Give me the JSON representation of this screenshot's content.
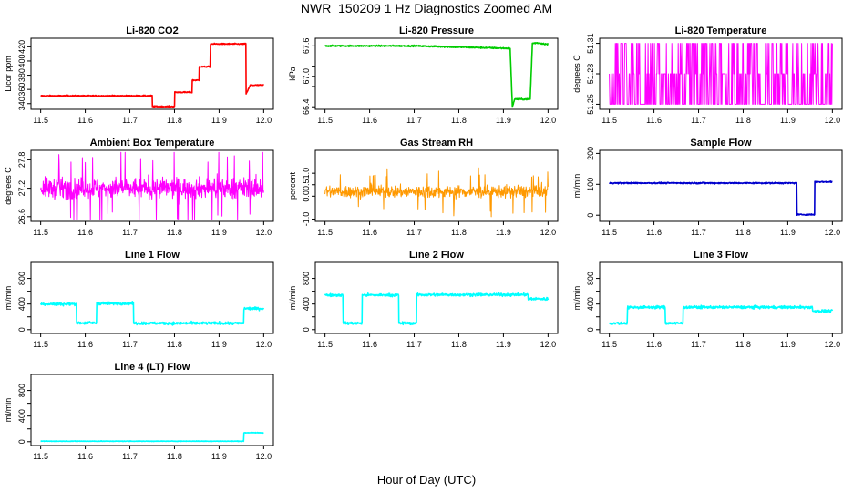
{
  "figure": {
    "title": "NWR_150209  1 Hz Diagnostics Zoomed AM",
    "xlabel": "Hour of Day (UTC)"
  },
  "chart_data": [
    {
      "type": "line",
      "title": "Li-820 CO2",
      "ylabel": "Licor ppm",
      "color": "#ff0000",
      "xlim": [
        11.5,
        12.0
      ],
      "ylim": [
        332,
        432
      ],
      "xticks": [
        "11.5",
        "11.6",
        "11.7",
        "11.8",
        "11.9",
        "12.0"
      ],
      "yticks": [
        340,
        360,
        380,
        400,
        420
      ],
      "noise": 0.6,
      "x": [
        11.5,
        11.75,
        11.75,
        11.8,
        11.8,
        11.82,
        11.82,
        11.8399,
        11.8399,
        11.855,
        11.855,
        11.88,
        11.88,
        11.96,
        11.96,
        11.97,
        12.0
      ],
      "y": [
        351,
        351,
        336,
        336,
        356,
        356,
        356,
        356,
        373,
        373,
        392,
        392,
        424,
        424,
        353,
        366,
        366
      ]
    },
    {
      "type": "line",
      "title": "Li-820 Pressure",
      "ylabel": "kPa",
      "color": "#00cc00",
      "xlim": [
        11.5,
        12.0
      ],
      "ylim": [
        66.35,
        67.75
      ],
      "xticks": [
        "11.5",
        "11.6",
        "11.7",
        "11.8",
        "11.9",
        "12.0"
      ],
      "yticks": [
        66.4,
        66.8,
        67.0,
        67.2,
        67.6
      ],
      "ytick_labels": [
        "66.4",
        "",
        "67.0",
        "",
        "67.6"
      ],
      "noise": 0.01,
      "x": [
        11.5,
        11.7,
        11.915,
        11.92,
        11.925,
        11.93,
        11.96,
        11.965,
        11.975,
        12.0
      ],
      "y": [
        67.6,
        67.6,
        67.55,
        66.4,
        66.55,
        66.55,
        66.55,
        67.65,
        67.66,
        67.63
      ]
    },
    {
      "type": "line",
      "title": "Li-820 Temperature",
      "ylabel": "degrees C",
      "color": "#ff00ff",
      "xlim": [
        11.5,
        12.0
      ],
      "ylim": [
        51.245,
        51.315
      ],
      "xticks": [
        "11.5",
        "11.6",
        "11.7",
        "11.8",
        "11.9",
        "12.0"
      ],
      "yticks": [
        51.25,
        51.28,
        51.31
      ],
      "levels": [
        51.25,
        51.28,
        51.31
      ],
      "style": "jump"
    },
    {
      "type": "line",
      "title": "Ambient Box Temperature",
      "ylabel": "degrees C",
      "color": "#ff00ff",
      "xlim": [
        11.5,
        12.0
      ],
      "ylim": [
        26.5,
        28.0
      ],
      "xticks": [
        "11.5",
        "11.6",
        "11.7",
        "11.8",
        "11.9",
        "12.0"
      ],
      "yticks": [
        26.6,
        27.2,
        27.8
      ],
      "ytick_labels": [
        "26.6",
        "27.2",
        "27.8"
      ],
      "mean": 27.2,
      "noise": 0.28,
      "style": "noise"
    },
    {
      "type": "line",
      "title": "Gas Stream RH",
      "ylabel": "percent",
      "color": "#ff9900",
      "xlim": [
        11.5,
        12.0
      ],
      "ylim": [
        -1.1,
        2.0
      ],
      "xticks": [
        "11.5",
        "11.6",
        "11.7",
        "11.8",
        "11.9",
        "12.0"
      ],
      "yticks": [
        -1.0,
        0.0,
        0.5,
        1.0
      ],
      "ytick_labels": [
        "-1.0",
        "0.0",
        "0.5",
        "1.0"
      ],
      "mean": 0.2,
      "noise": 0.35,
      "style": "noise"
    },
    {
      "type": "line",
      "title": "Sample Flow",
      "ylabel": "ml/min",
      "color": "#0000cc",
      "xlim": [
        11.5,
        12.0
      ],
      "ylim": [
        -20,
        210
      ],
      "xticks": [
        "11.5",
        "11.6",
        "11.7",
        "11.8",
        "11.9",
        "12.0"
      ],
      "yticks": [
        0,
        100,
        200
      ],
      "noise": 1.5,
      "x": [
        11.5,
        11.92,
        11.92,
        11.96,
        11.96,
        12.0
      ],
      "y": [
        104,
        104,
        2,
        2,
        108,
        108
      ]
    },
    {
      "type": "line",
      "title": "Line 1 Flow",
      "ylabel": "ml/min",
      "color": "#00ffff",
      "xlim": [
        11.5,
        12.0
      ],
      "ylim": [
        -60,
        1050
      ],
      "xticks": [
        "11.5",
        "11.6",
        "11.7",
        "11.8",
        "11.9",
        "12.0"
      ],
      "yticks": [
        0,
        200,
        400,
        600,
        800
      ],
      "ytick_labels": [
        "0",
        "",
        "400",
        "",
        "800"
      ],
      "noise": 15,
      "x": [
        11.5,
        11.58,
        11.58,
        11.625,
        11.625,
        11.708,
        11.708,
        11.955,
        11.955,
        12.0
      ],
      "y": [
        400,
        400,
        105,
        105,
        410,
        410,
        100,
        100,
        330,
        330
      ]
    },
    {
      "type": "line",
      "title": "Line 2 Flow",
      "ylabel": "ml/min",
      "color": "#00ffff",
      "xlim": [
        11.5,
        12.0
      ],
      "ylim": [
        -60,
        1050
      ],
      "xticks": [
        "11.5",
        "11.6",
        "11.7",
        "11.8",
        "11.9",
        "12.0"
      ],
      "yticks": [
        0,
        200,
        400,
        600,
        800
      ],
      "ytick_labels": [
        "0",
        "",
        "400",
        "",
        "800"
      ],
      "noise": 15,
      "x": [
        11.5,
        11.54,
        11.54,
        11.583,
        11.583,
        11.665,
        11.665,
        11.705,
        11.705,
        11.955,
        11.955,
        12.0
      ],
      "y": [
        540,
        540,
        100,
        100,
        540,
        540,
        100,
        100,
        545,
        545,
        480,
        480
      ]
    },
    {
      "type": "line",
      "title": "Line 3 Flow",
      "ylabel": "ml/min",
      "color": "#00ffff",
      "xlim": [
        11.5,
        12.0
      ],
      "ylim": [
        -60,
        1050
      ],
      "xticks": [
        "11.5",
        "11.6",
        "11.7",
        "11.8",
        "11.9",
        "12.0"
      ],
      "yticks": [
        0,
        200,
        400,
        600,
        800
      ],
      "ytick_labels": [
        "0",
        "",
        "400",
        "",
        "800"
      ],
      "noise": 15,
      "x": [
        11.5,
        11.54,
        11.54,
        11.625,
        11.625,
        11.665,
        11.665,
        11.955,
        11.955,
        12.0
      ],
      "y": [
        100,
        100,
        350,
        350,
        100,
        100,
        350,
        350,
        290,
        290
      ]
    },
    {
      "type": "line",
      "title": "Line 4 (LT) Flow",
      "ylabel": "ml/min",
      "color": "#00ffff",
      "xlim": [
        11.5,
        12.0
      ],
      "ylim": [
        -60,
        1050
      ],
      "xticks": [
        "11.5",
        "11.6",
        "11.7",
        "11.8",
        "11.9",
        "12.0"
      ],
      "yticks": [
        0,
        200,
        400,
        600,
        800
      ],
      "ytick_labels": [
        "0",
        "",
        "400",
        "",
        "800"
      ],
      "noise": 3,
      "x": [
        11.5,
        11.955,
        11.955,
        12.0
      ],
      "y": [
        8,
        8,
        140,
        140
      ]
    }
  ]
}
